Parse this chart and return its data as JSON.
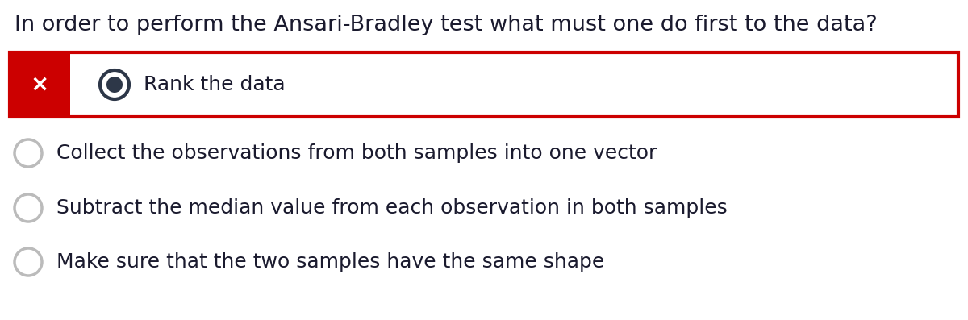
{
  "question": "In order to perform the Ansari-Bradley test what must one do first to the data?",
  "question_fontsize": 19.5,
  "question_color": "#1a1a2e",
  "background_color": "#ffffff",
  "selected_answer": "Rank the data",
  "selected_box_border_color": "#cc0000",
  "selected_box_fill_color": "#ffffff",
  "selected_x_bg_color": "#cc0000",
  "selected_x_color": "#ffffff",
  "selected_radio_outer_color": "#2d3748",
  "selected_radio_inner_color": "#2d3748",
  "selected_text_color": "#1a1a2e",
  "other_answers": [
    "Collect the observations from both samples into one vector",
    "Subtract the median value from each observation in both samples",
    "Make sure that the two samples have the same shape"
  ],
  "other_radio_color": "#bbbbbb",
  "other_text_color": "#1a1a2e",
  "answer_fontsize": 18
}
